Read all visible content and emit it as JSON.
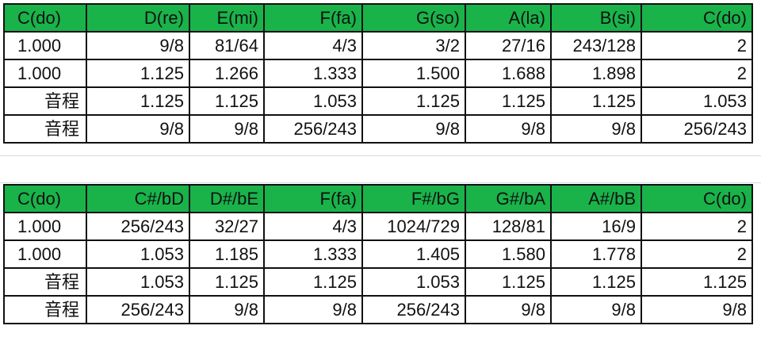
{
  "tables": [
    {
      "header": [
        "C(do)",
        "D(re)",
        "E(mi)",
        "F(fa)",
        "G(so)",
        "A(la)",
        "B(si)",
        "C(do)"
      ],
      "rows": [
        [
          "1.000",
          "9/8",
          "81/64",
          "4/3",
          "3/2",
          "27/16",
          "243/128",
          "2"
        ],
        [
          "1.000",
          "1.125",
          "1.266",
          "1.333",
          "1.500",
          "1.688",
          "1.898",
          "2"
        ],
        [
          "音程",
          "1.125",
          "1.125",
          "1.053",
          "1.125",
          "1.125",
          "1.125",
          "1.053"
        ],
        [
          "音程",
          "9/8",
          "9/8",
          "256/243",
          "9/8",
          "9/8",
          "9/8",
          "256/243"
        ]
      ]
    },
    {
      "header": [
        "C(do)",
        "C#/bD",
        "D#/bE",
        "F(fa)",
        "F#/bG",
        "G#/bA",
        "A#/bB",
        "C(do)"
      ],
      "rows": [
        [
          "1.000",
          "256/243",
          "32/27",
          "4/3",
          "1024/729",
          "128/81",
          "16/9",
          "2"
        ],
        [
          "1.000",
          "1.053",
          "1.185",
          "1.333",
          "1.405",
          "1.580",
          "1.778",
          "2"
        ],
        [
          "音程",
          "1.053",
          "1.125",
          "1.125",
          "1.053",
          "1.125",
          "1.125",
          "1.125"
        ],
        [
          "音程",
          "256/243",
          "9/8",
          "9/8",
          "256/243",
          "9/8",
          "9/8",
          "9/8"
        ]
      ]
    }
  ],
  "colors": {
    "header_fill": "#19b34a",
    "border": "#111111",
    "text": "#111111"
  }
}
